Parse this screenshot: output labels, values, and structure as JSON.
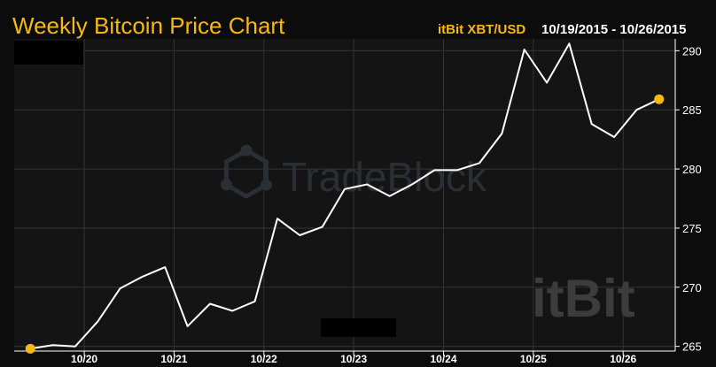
{
  "colors": {
    "background": "#0c0c0c",
    "plot": "#141414",
    "accent": "#f5b90f",
    "line": "#ffffff",
    "grid": "#343434",
    "text": "#ffffff",
    "watermark": "#2a2f35"
  },
  "header": {
    "title": "Weekly Bitcoin Price Chart",
    "source": "itBit XBT/USD",
    "date_range": "10/19/2015 - 10/26/2015"
  },
  "watermarks": {
    "tradeblock_icon": "hexagon-network-icon",
    "tradeblock": "TradeBlock",
    "itbit": "itBit"
  },
  "chart_data": {
    "type": "line",
    "x_tick_labels": [
      "10/20",
      "10/21",
      "10/22",
      "10/23",
      "10/24",
      "10/25",
      "10/26"
    ],
    "x_tick_positions": [
      0.6,
      1.6,
      2.6,
      3.6,
      4.6,
      5.6,
      6.6
    ],
    "xlim": [
      -0.18,
      7.18
    ],
    "ylim": [
      264.6,
      291
    ],
    "y_ticks": [
      265,
      270,
      275,
      280,
      285,
      290
    ],
    "grid": true,
    "series": [
      {
        "x": [
          0,
          0.25,
          0.5,
          0.75,
          1.0,
          1.25,
          1.5,
          1.75,
          2.0,
          2.25,
          2.5,
          2.75,
          3.0,
          3.25,
          3.5,
          3.75,
          4.0,
          4.25,
          4.5,
          4.75,
          5.0,
          5.25,
          5.5,
          5.75,
          6.0,
          6.25,
          6.5,
          6.75,
          7.0
        ],
        "y": [
          264.8,
          265.1,
          265.0,
          267.1,
          269.9,
          270.9,
          271.7,
          266.7,
          268.6,
          268.0,
          268.8,
          275.8,
          274.4,
          275.1,
          278.3,
          278.7,
          277.7,
          278.7,
          279.9,
          279.9,
          280.5,
          283.0,
          290.1,
          287.3,
          290.6,
          283.8,
          282.7,
          285.0,
          285.9
        ]
      }
    ]
  }
}
